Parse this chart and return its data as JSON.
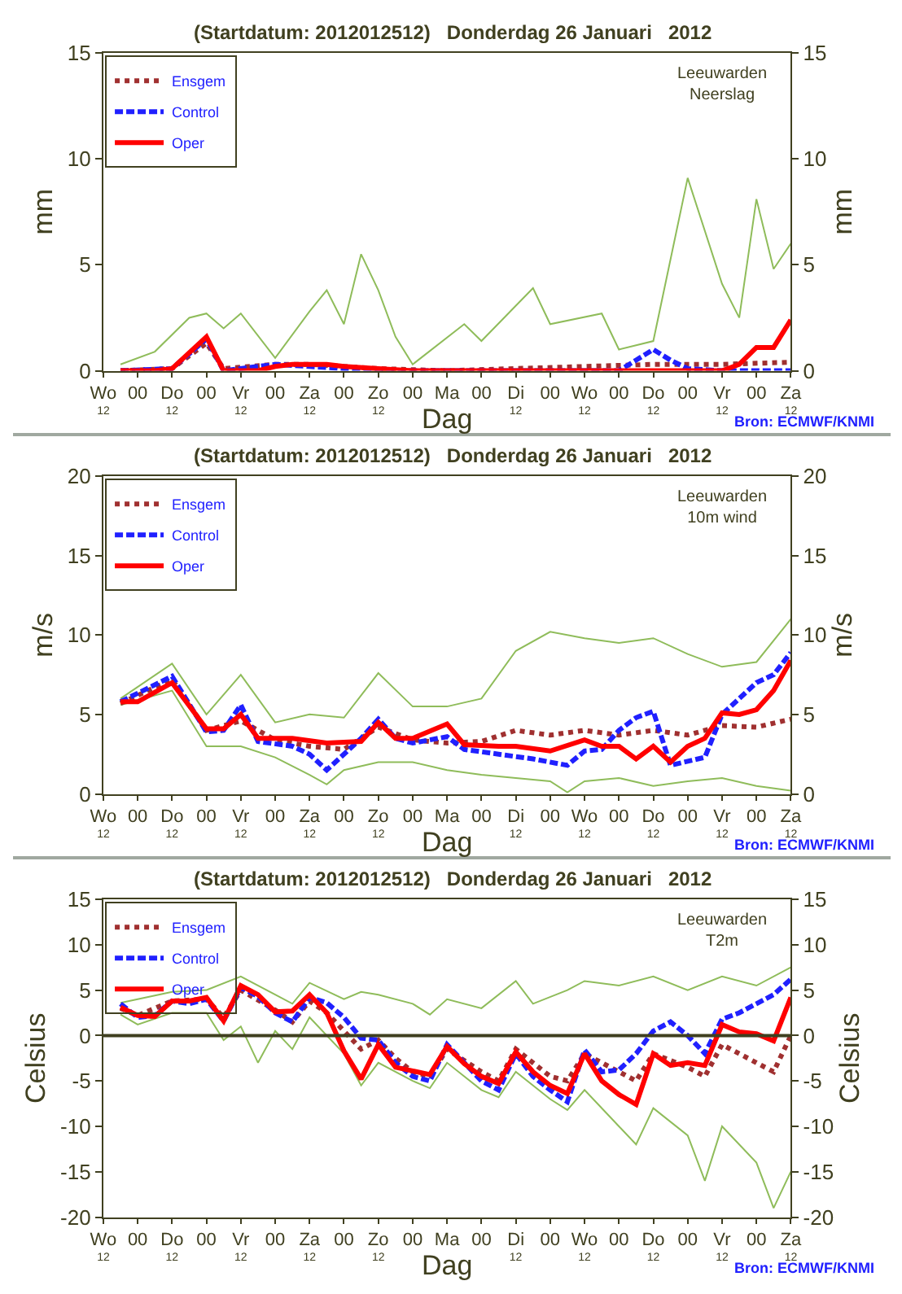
{
  "chart_data": [
    {
      "type": "line",
      "title": "(Startdatum: 2012012512)   Donderdag 26 Januari   2012",
      "xlabel": "Dag",
      "ylabel": "mm",
      "y2label": "mm",
      "annotations": [
        "Leeuwarden\nNeerslag",
        "Bron: ECMWF/KNMI"
      ],
      "xlim": [
        "2012-01-25T12:00",
        "2012-02-04T12:00"
      ],
      "xticks": [
        {
          "value": "2012-01-25T12:00",
          "label": "Wo"
        },
        {
          "value": "2012-01-26T00:00",
          "label": "00"
        },
        {
          "value": "2012-01-26T12:00",
          "label": "Do"
        },
        {
          "value": "2012-01-27T00:00",
          "label": "00"
        },
        {
          "value": "2012-01-27T12:00",
          "label": "Vr"
        },
        {
          "value": "2012-01-28T00:00",
          "label": "00"
        },
        {
          "value": "2012-01-28T12:00",
          "label": "Za"
        },
        {
          "value": "2012-01-29T00:00",
          "label": "00"
        },
        {
          "value": "2012-01-29T12:00",
          "label": "Zo"
        },
        {
          "value": "2012-01-30T00:00",
          "label": "00"
        },
        {
          "value": "2012-01-30T12:00",
          "label": "Ma"
        },
        {
          "value": "2012-01-31T00:00",
          "label": "00"
        },
        {
          "value": "2012-01-31T12:00",
          "label": "Di"
        },
        {
          "value": "2012-02-01T00:00",
          "label": "00"
        },
        {
          "value": "2012-02-01T12:00",
          "label": "Wo"
        },
        {
          "value": "2012-02-02T00:00",
          "label": "00"
        },
        {
          "value": "2012-02-02T12:00",
          "label": "Do"
        },
        {
          "value": "2012-02-03T00:00",
          "label": "00"
        },
        {
          "value": "2012-02-03T12:00",
          "label": "Vr"
        },
        {
          "value": "2012-02-04T00:00",
          "label": "00"
        },
        {
          "value": "2012-02-04T12:00",
          "label": "Za"
        }
      ],
      "x2lim": [
        "2012-01-25T12:00",
        "2012-02-04T12:00"
      ],
      "x2ticks": [
        {
          "value": "2012-01-25T12:00",
          "label": "12"
        },
        {
          "value": "2012-01-26T12:00",
          "label": "12"
        },
        {
          "value": "2012-01-27T12:00",
          "label": "12"
        },
        {
          "value": "2012-01-28T12:00",
          "label": "12"
        },
        {
          "value": "2012-01-29T12:00",
          "label": "12"
        },
        {
          "value": "2012-01-31T12:00",
          "label": "12"
        },
        {
          "value": "2012-02-01T12:00",
          "label": "12"
        },
        {
          "value": "2012-02-02T12:00",
          "label": "12"
        },
        {
          "value": "2012-02-03T12:00",
          "label": "12"
        },
        {
          "value": "2012-02-04T12:00",
          "label": "12"
        }
      ],
      "ylim": [
        0,
        15
      ],
      "yticks": [
        0,
        5,
        10,
        15
      ],
      "y2lim": [
        0,
        15
      ],
      "y2ticks": [
        0,
        5,
        10,
        15
      ],
      "legend": "top left",
      "series": [
        {
          "color": "#8fbc5a",
          "line_style": "solid",
          "x": [
            "2012-01-25T18:00",
            "2012-01-26T06:00",
            "2012-01-26T18:00",
            "2012-01-27T00:00",
            "2012-01-27T06:00",
            "2012-01-27T12:00",
            "2012-01-28T00:00",
            "2012-01-28T12:00",
            "2012-01-28T18:00",
            "2012-01-29T00:00",
            "2012-01-29T06:00",
            "2012-01-29T12:00",
            "2012-01-29T18:00",
            "2012-01-30T00:00",
            "2012-01-30T18:00",
            "2012-01-31T00:00",
            "2012-01-31T18:00",
            "2012-02-01T00:00",
            "2012-02-01T18:00",
            "2012-02-02T00:00",
            "2012-02-02T12:00",
            "2012-02-03T00:00",
            "2012-02-03T12:00",
            "2012-02-03T18:00",
            "2012-02-04T00:00",
            "2012-02-04T06:00",
            "2012-02-04T12:00"
          ],
          "values": [
            0.3,
            0.9,
            2.5,
            2.7,
            2.0,
            2.7,
            0.6,
            2.8,
            3.8,
            2.2,
            5.5,
            3.8,
            1.6,
            0.3,
            2.2,
            1.4,
            3.9,
            2.2,
            2.7,
            1.0,
            1.4,
            9.1,
            4.1,
            2.5,
            8.1,
            4.8,
            6.0
          ]
        },
        {
          "name": "Ensgem",
          "color": "#a03030",
          "line_style": "dotted",
          "x": [
            "2012-01-25T18:00",
            "2012-01-26T12:00",
            "2012-01-27T00:00",
            "2012-01-27T06:00",
            "2012-01-28T00:00",
            "2012-01-28T12:00",
            "2012-01-29T00:00",
            "2012-01-29T12:00",
            "2012-01-30T12:00",
            "2012-01-31T12:00",
            "2012-02-01T12:00",
            "2012-02-02T12:00",
            "2012-02-03T12:00",
            "2012-02-04T12:00"
          ],
          "values": [
            0,
            0.1,
            1.3,
            0.1,
            0.3,
            0.3,
            0.2,
            0.1,
            0,
            0.1,
            0.2,
            0.3,
            0.3,
            0.4
          ]
        },
        {
          "name": "Control",
          "color": "#2020ff",
          "line_style": "dashed",
          "x": [
            "2012-01-25T18:00",
            "2012-01-26T12:00",
            "2012-01-27T00:00",
            "2012-01-27T06:00",
            "2012-01-28T00:00",
            "2012-01-28T12:00",
            "2012-01-29T00:00",
            "2012-01-29T12:00",
            "2012-02-02T00:00",
            "2012-02-02T06:00",
            "2012-02-02T12:00",
            "2012-02-02T18:00",
            "2012-02-03T00:00",
            "2012-02-03T12:00",
            "2012-02-04T12:00"
          ],
          "values": [
            0,
            0.1,
            1.5,
            0,
            0.3,
            0.2,
            0.1,
            0,
            0,
            0.5,
            1.0,
            0.5,
            0.1,
            0,
            0
          ]
        },
        {
          "name": "Oper",
          "color": "#ff0000",
          "line_style": "solid",
          "x": [
            "2012-01-25T18:00",
            "2012-01-26T06:00",
            "2012-01-26T12:00",
            "2012-01-27T00:00",
            "2012-01-27T06:00",
            "2012-01-27T18:00",
            "2012-01-28T00:00",
            "2012-01-28T06:00",
            "2012-01-28T12:00",
            "2012-01-28T18:00",
            "2012-01-29T00:00",
            "2012-01-29T12:00",
            "2012-01-30T00:00",
            "2012-02-01T12:00",
            "2012-02-03T12:00",
            "2012-02-03T18:00",
            "2012-02-04T00:00",
            "2012-02-04T06:00",
            "2012-02-04T12:00"
          ],
          "values": [
            0,
            0,
            0.1,
            1.6,
            0,
            0,
            0.2,
            0.3,
            0.3,
            0.3,
            0.2,
            0.1,
            0,
            0,
            0,
            0.3,
            1.1,
            1.1,
            2.4
          ]
        }
      ]
    },
    {
      "type": "line",
      "title": "(Startdatum: 2012012512)   Donderdag 26 Januari   2012",
      "xlabel": "Dag",
      "ylabel": "m/s",
      "y2label": "m/s",
      "annotations": [
        "Leeuwarden\n10m wind",
        "Bron: ECMWF/KNMI"
      ],
      "xlim": [
        "2012-01-25T12:00",
        "2012-02-04T12:00"
      ],
      "xticks": [
        {
          "value": "2012-01-25T12:00",
          "label": "Wo"
        },
        {
          "value": "2012-01-26T00:00",
          "label": "00"
        },
        {
          "value": "2012-01-26T12:00",
          "label": "Do"
        },
        {
          "value": "2012-01-27T00:00",
          "label": "00"
        },
        {
          "value": "2012-01-27T12:00",
          "label": "Vr"
        },
        {
          "value": "2012-01-28T00:00",
          "label": "00"
        },
        {
          "value": "2012-01-28T12:00",
          "label": "Za"
        },
        {
          "value": "2012-01-29T00:00",
          "label": "00"
        },
        {
          "value": "2012-01-29T12:00",
          "label": "Zo"
        },
        {
          "value": "2012-01-30T00:00",
          "label": "00"
        },
        {
          "value": "2012-01-30T12:00",
          "label": "Ma"
        },
        {
          "value": "2012-01-31T00:00",
          "label": "00"
        },
        {
          "value": "2012-01-31T12:00",
          "label": "Di"
        },
        {
          "value": "2012-02-01T00:00",
          "label": "00"
        },
        {
          "value": "2012-02-01T12:00",
          "label": "Wo"
        },
        {
          "value": "2012-02-02T00:00",
          "label": "00"
        },
        {
          "value": "2012-02-02T12:00",
          "label": "Do"
        },
        {
          "value": "2012-02-03T00:00",
          "label": "00"
        },
        {
          "value": "2012-02-03T12:00",
          "label": "Vr"
        },
        {
          "value": "2012-02-04T00:00",
          "label": "00"
        },
        {
          "value": "2012-02-04T12:00",
          "label": "Za"
        }
      ],
      "x2lim": [
        "2012-01-25T12:00",
        "2012-02-04T12:00"
      ],
      "x2ticks": [
        {
          "value": "2012-01-25T12:00",
          "label": "12"
        },
        {
          "value": "2012-01-26T12:00",
          "label": "12"
        },
        {
          "value": "2012-01-27T12:00",
          "label": "12"
        },
        {
          "value": "2012-01-28T12:00",
          "label": "12"
        },
        {
          "value": "2012-01-29T12:00",
          "label": "12"
        },
        {
          "value": "2012-01-31T12:00",
          "label": "12"
        },
        {
          "value": "2012-02-01T12:00",
          "label": "12"
        },
        {
          "value": "2012-02-02T12:00",
          "label": "12"
        },
        {
          "value": "2012-02-03T12:00",
          "label": "12"
        },
        {
          "value": "2012-02-04T12:00",
          "label": "12"
        }
      ],
      "ylim": [
        0,
        20
      ],
      "yticks": [
        0,
        5,
        10,
        15,
        20
      ],
      "y2lim": [
        0,
        20
      ],
      "y2ticks": [
        0,
        5,
        10,
        15,
        20
      ],
      "legend": "top left",
      "series": [
        {
          "color": "#8fbc5a",
          "line_style": "solid",
          "x": [
            "2012-01-25T18:00",
            "2012-01-26T12:00",
            "2012-01-27T00:00",
            "2012-01-27T12:00",
            "2012-01-28T00:00",
            "2012-01-28T12:00",
            "2012-01-29T00:00",
            "2012-01-29T12:00",
            "2012-01-30T00:00",
            "2012-01-30T12:00",
            "2012-01-31T00:00",
            "2012-01-31T12:00",
            "2012-02-01T00:00",
            "2012-02-01T12:00",
            "2012-02-02T00:00",
            "2012-02-02T12:00",
            "2012-02-03T00:00",
            "2012-02-03T12:00",
            "2012-02-04T00:00",
            "2012-02-04T12:00"
          ],
          "values": [
            6.0,
            8.2,
            5.0,
            7.5,
            4.5,
            5.0,
            4.8,
            7.6,
            5.5,
            5.5,
            6.0,
            9.0,
            10.2,
            9.8,
            9.5,
            9.8,
            8.8,
            8.0,
            8.3,
            11.0
          ]
        },
        {
          "color": "#8fbc5a",
          "line_style": "solid",
          "x": [
            "2012-01-25T18:00",
            "2012-01-26T12:00",
            "2012-01-27T00:00",
            "2012-01-27T12:00",
            "2012-01-28T00:00",
            "2012-01-28T12:00",
            "2012-01-28T18:00",
            "2012-01-29T00:00",
            "2012-01-29T12:00",
            "2012-01-30T00:00",
            "2012-01-30T12:00",
            "2012-01-31T00:00",
            "2012-01-31T12:00",
            "2012-02-01T00:00",
            "2012-02-01T06:00",
            "2012-02-01T12:00",
            "2012-02-02T00:00",
            "2012-02-02T12:00",
            "2012-02-03T00:00",
            "2012-02-03T12:00",
            "2012-02-04T00:00",
            "2012-02-04T12:00"
          ],
          "values": [
            5.6,
            6.5,
            3.0,
            3.0,
            2.3,
            1.2,
            0.6,
            1.5,
            2.0,
            2.0,
            1.5,
            1.2,
            1.0,
            0.8,
            0.1,
            0.8,
            1.0,
            0.5,
            0.8,
            1.0,
            0.5,
            0.2
          ]
        },
        {
          "name": "Ensgem",
          "color": "#a03030",
          "line_style": "dotted",
          "x": [
            "2012-01-25T18:00",
            "2012-01-26T12:00",
            "2012-01-27T00:00",
            "2012-01-27T12:00",
            "2012-01-28T00:00",
            "2012-01-28T12:00",
            "2012-01-29T00:00",
            "2012-01-29T12:00",
            "2012-01-30T00:00",
            "2012-01-30T12:00",
            "2012-01-31T00:00",
            "2012-01-31T12:00",
            "2012-02-01T00:00",
            "2012-02-01T12:00",
            "2012-02-02T00:00",
            "2012-02-02T12:00",
            "2012-02-03T00:00",
            "2012-02-03T12:00",
            "2012-02-04T00:00",
            "2012-02-04T12:00"
          ],
          "values": [
            5.7,
            7.2,
            4.0,
            4.6,
            3.4,
            3.0,
            2.8,
            4.2,
            3.4,
            3.2,
            3.3,
            4.0,
            3.7,
            4.0,
            3.7,
            4.0,
            3.7,
            4.3,
            4.2,
            4.7
          ]
        },
        {
          "name": "Control",
          "color": "#2020ff",
          "line_style": "dashed",
          "x": [
            "2012-01-25T18:00",
            "2012-01-26T12:00",
            "2012-01-27T00:00",
            "2012-01-27T06:00",
            "2012-01-27T12:00",
            "2012-01-27T18:00",
            "2012-01-28T06:00",
            "2012-01-28T12:00",
            "2012-01-28T18:00",
            "2012-01-29T06:00",
            "2012-01-29T12:00",
            "2012-01-29T18:00",
            "2012-01-30T00:00",
            "2012-01-30T12:00",
            "2012-01-30T18:00",
            "2012-01-31T06:00",
            "2012-01-31T18:00",
            "2012-02-01T06:00",
            "2012-02-01T12:00",
            "2012-02-01T18:00",
            "2012-02-02T00:00",
            "2012-02-02T06:00",
            "2012-02-02T12:00",
            "2012-02-02T18:00",
            "2012-02-03T06:00",
            "2012-02-03T12:00",
            "2012-02-04T00:00",
            "2012-02-04T06:00",
            "2012-02-04T12:00"
          ],
          "values": [
            5.8,
            7.4,
            3.9,
            4.0,
            5.6,
            3.3,
            3.0,
            2.5,
            1.5,
            3.5,
            4.7,
            3.5,
            3.2,
            3.6,
            2.8,
            2.5,
            2.2,
            1.8,
            2.7,
            2.8,
            4.0,
            4.8,
            5.2,
            1.8,
            2.3,
            5.0,
            7.0,
            7.5,
            8.9
          ]
        },
        {
          "name": "Oper",
          "color": "#ff0000",
          "line_style": "solid",
          "x": [
            "2012-01-25T18:00",
            "2012-01-26T00:00",
            "2012-01-26T12:00",
            "2012-01-27T00:00",
            "2012-01-27T06:00",
            "2012-01-27T12:00",
            "2012-01-27T18:00",
            "2012-01-28T06:00",
            "2012-01-28T18:00",
            "2012-01-29T06:00",
            "2012-01-29T12:00",
            "2012-01-29T18:00",
            "2012-01-30T00:00",
            "2012-01-30T12:00",
            "2012-01-30T18:00",
            "2012-01-31T06:00",
            "2012-01-31T12:00",
            "2012-02-01T00:00",
            "2012-02-01T12:00",
            "2012-02-01T18:00",
            "2012-02-02T00:00",
            "2012-02-02T06:00",
            "2012-02-02T12:00",
            "2012-02-02T18:00",
            "2012-02-03T00:00",
            "2012-02-03T06:00",
            "2012-02-03T12:00",
            "2012-02-03T18:00",
            "2012-02-04T00:00",
            "2012-02-04T06:00",
            "2012-02-04T12:00"
          ],
          "values": [
            5.8,
            5.8,
            7.0,
            4.1,
            4.1,
            5.0,
            3.5,
            3.5,
            3.2,
            3.3,
            4.5,
            3.5,
            3.5,
            4.4,
            3.1,
            3.0,
            3.0,
            2.7,
            3.4,
            3.0,
            3.0,
            2.2,
            3.0,
            2.0,
            3.0,
            3.5,
            5.1,
            5.0,
            5.3,
            6.5,
            8.4
          ]
        }
      ]
    },
    {
      "type": "line",
      "title": "(Startdatum: 2012012512)   Donderdag 26 Januari   2012",
      "xlabel": "Dag",
      "ylabel": "Celsius",
      "y2label": "Celsius",
      "annotations": [
        "Leeuwarden\nT2m",
        "Bron: ECMWF/KNMI"
      ],
      "xlim": [
        "2012-01-25T12:00",
        "2012-02-04T12:00"
      ],
      "xticks": [
        {
          "value": "2012-01-25T12:00",
          "label": "Wo"
        },
        {
          "value": "2012-01-26T00:00",
          "label": "00"
        },
        {
          "value": "2012-01-26T12:00",
          "label": "Do"
        },
        {
          "value": "2012-01-27T00:00",
          "label": "00"
        },
        {
          "value": "2012-01-27T12:00",
          "label": "Vr"
        },
        {
          "value": "2012-01-28T00:00",
          "label": "00"
        },
        {
          "value": "2012-01-28T12:00",
          "label": "Za"
        },
        {
          "value": "2012-01-29T00:00",
          "label": "00"
        },
        {
          "value": "2012-01-29T12:00",
          "label": "Zo"
        },
        {
          "value": "2012-01-30T00:00",
          "label": "00"
        },
        {
          "value": "2012-01-30T12:00",
          "label": "Ma"
        },
        {
          "value": "2012-01-31T00:00",
          "label": "00"
        },
        {
          "value": "2012-01-31T12:00",
          "label": "Di"
        },
        {
          "value": "2012-02-01T00:00",
          "label": "00"
        },
        {
          "value": "2012-02-01T12:00",
          "label": "Wo"
        },
        {
          "value": "2012-02-02T00:00",
          "label": "00"
        },
        {
          "value": "2012-02-02T12:00",
          "label": "Do"
        },
        {
          "value": "2012-02-03T00:00",
          "label": "00"
        },
        {
          "value": "2012-02-03T12:00",
          "label": "Vr"
        },
        {
          "value": "2012-02-04T00:00",
          "label": "00"
        },
        {
          "value": "2012-02-04T12:00",
          "label": "Za"
        }
      ],
      "x2lim": [
        "2012-01-25T12:00",
        "2012-02-04T12:00"
      ],
      "x2ticks": [
        {
          "value": "2012-01-25T12:00",
          "label": "12"
        },
        {
          "value": "2012-01-26T12:00",
          "label": "12"
        },
        {
          "value": "2012-01-27T12:00",
          "label": "12"
        },
        {
          "value": "2012-01-28T12:00",
          "label": "12"
        },
        {
          "value": "2012-01-29T12:00",
          "label": "12"
        },
        {
          "value": "2012-01-31T12:00",
          "label": "12"
        },
        {
          "value": "2012-02-01T12:00",
          "label": "12"
        },
        {
          "value": "2012-02-02T12:00",
          "label": "12"
        },
        {
          "value": "2012-02-03T12:00",
          "label": "12"
        },
        {
          "value": "2012-02-04T12:00",
          "label": "12"
        }
      ],
      "ylim": [
        -20,
        15
      ],
      "yticks": [
        -20,
        -15,
        -10,
        -5,
        0,
        5,
        10,
        15
      ],
      "y2lim": [
        -20,
        15
      ],
      "y2ticks": [
        -20,
        -15,
        -10,
        -5,
        0,
        5,
        10,
        15
      ],
      "legend": "top left",
      "ref_lines": [
        {
          "axis": "y",
          "value": 0,
          "color": "#404020"
        }
      ],
      "series": [
        {
          "color": "#8fbc5a",
          "line_style": "solid",
          "x": [
            "2012-01-25T18:00",
            "2012-01-26T12:00",
            "2012-01-27T00:00",
            "2012-01-27T12:00",
            "2012-01-28T00:00",
            "2012-01-28T06:00",
            "2012-01-28T12:00",
            "2012-01-29T00:00",
            "2012-01-29T06:00",
            "2012-01-29T12:00",
            "2012-01-30T00:00",
            "2012-01-30T06:00",
            "2012-01-30T12:00",
            "2012-01-31T00:00",
            "2012-01-31T12:00",
            "2012-01-31T18:00",
            "2012-02-01T06:00",
            "2012-02-01T12:00",
            "2012-02-02T00:00",
            "2012-02-02T12:00",
            "2012-02-03T00:00",
            "2012-02-03T12:00",
            "2012-02-04T00:00",
            "2012-02-04T12:00"
          ],
          "values": [
            3.6,
            4.8,
            5.0,
            6.5,
            4.5,
            3.5,
            5.8,
            4.0,
            4.8,
            4.5,
            3.5,
            2.3,
            4.0,
            3.0,
            6.0,
            3.5,
            5.0,
            6.0,
            5.5,
            6.5,
            5.0,
            6.5,
            5.5,
            7.5
          ]
        },
        {
          "color": "#8fbc5a",
          "line_style": "solid",
          "x": [
            "2012-01-25T18:00",
            "2012-01-26T00:00",
            "2012-01-26T12:00",
            "2012-01-27T00:00",
            "2012-01-27T06:00",
            "2012-01-27T12:00",
            "2012-01-27T18:00",
            "2012-01-28T00:00",
            "2012-01-28T06:00",
            "2012-01-28T12:00",
            "2012-01-29T00:00",
            "2012-01-29T06:00",
            "2012-01-29T12:00",
            "2012-01-30T00:00",
            "2012-01-30T06:00",
            "2012-01-30T12:00",
            "2012-01-31T00:00",
            "2012-01-31T06:00",
            "2012-01-31T12:00",
            "2012-02-01T00:00",
            "2012-02-01T06:00",
            "2012-02-01T12:00",
            "2012-02-02T00:00",
            "2012-02-02T06:00",
            "2012-02-02T12:00",
            "2012-02-03T00:00",
            "2012-02-03T06:00",
            "2012-02-03T12:00",
            "2012-02-04T00:00",
            "2012-02-04T06:00",
            "2012-02-04T12:00"
          ],
          "values": [
            2.3,
            1.2,
            2.5,
            2.5,
            -0.5,
            1.0,
            -3.0,
            0.5,
            -1.5,
            2.0,
            -2.0,
            -5.5,
            -3.0,
            -5.0,
            -5.8,
            -3.0,
            -6.0,
            -6.8,
            -4.0,
            -7.0,
            -8.2,
            -6.0,
            -10.0,
            -12.0,
            -8.0,
            -11.0,
            -16.0,
            -10.0,
            -14.0,
            -19.0,
            -15.0
          ]
        },
        {
          "name": "Ensgem",
          "color": "#a03030",
          "line_style": "dotted",
          "x": [
            "2012-01-25T18:00",
            "2012-01-26T00:00",
            "2012-01-26T12:00",
            "2012-01-27T00:00",
            "2012-01-27T06:00",
            "2012-01-27T12:00",
            "2012-01-28T00:00",
            "2012-01-28T06:00",
            "2012-01-28T12:00",
            "2012-01-28T18:00",
            "2012-01-29T00:00",
            "2012-01-29T06:00",
            "2012-01-29T12:00",
            "2012-01-29T18:00",
            "2012-01-30T00:00",
            "2012-01-30T06:00",
            "2012-01-30T12:00",
            "2012-01-31T00:00",
            "2012-01-31T06:00",
            "2012-01-31T12:00",
            "2012-02-01T00:00",
            "2012-02-01T06:00",
            "2012-02-01T12:00",
            "2012-02-02T00:00",
            "2012-02-02T06:00",
            "2012-02-02T12:00",
            "2012-02-03T00:00",
            "2012-02-03T06:00",
            "2012-02-03T12:00",
            "2012-02-04T00:00",
            "2012-02-04T06:00",
            "2012-02-04T12:00"
          ],
          "values": [
            3.0,
            2.2,
            3.8,
            4.0,
            2.0,
            5.0,
            2.8,
            1.5,
            3.8,
            2.5,
            0.5,
            -1.5,
            -0.5,
            -2.5,
            -4.0,
            -4.5,
            -1.5,
            -4.0,
            -5.0,
            -1.5,
            -4.5,
            -5.0,
            -2.0,
            -4.0,
            -5.0,
            -2.0,
            -3.5,
            -4.5,
            -1.0,
            -3.0,
            -4.0,
            0
          ]
        },
        {
          "name": "Control",
          "color": "#2020ff",
          "line_style": "dashed",
          "x": [
            "2012-01-25T18:00",
            "2012-01-26T00:00",
            "2012-01-26T06:00",
            "2012-01-26T12:00",
            "2012-01-26T18:00",
            "2012-01-27T00:00",
            "2012-01-27T06:00",
            "2012-01-27T12:00",
            "2012-01-27T18:00",
            "2012-01-28T00:00",
            "2012-01-28T06:00",
            "2012-01-28T12:00",
            "2012-01-28T18:00",
            "2012-01-29T00:00",
            "2012-01-29T06:00",
            "2012-01-29T12:00",
            "2012-01-29T18:00",
            "2012-01-30T00:00",
            "2012-01-30T06:00",
            "2012-01-30T12:00",
            "2012-01-30T18:00",
            "2012-01-31T00:00",
            "2012-01-31T06:00",
            "2012-01-31T12:00",
            "2012-01-31T18:00",
            "2012-02-01T00:00",
            "2012-02-01T06:00",
            "2012-02-01T12:00",
            "2012-02-01T18:00",
            "2012-02-02T00:00",
            "2012-02-02T06:00",
            "2012-02-02T12:00",
            "2012-02-02T18:00",
            "2012-02-03T00:00",
            "2012-02-03T06:00",
            "2012-02-03T12:00",
            "2012-02-03T18:00",
            "2012-02-04T00:00",
            "2012-02-04T06:00",
            "2012-02-04T12:00"
          ],
          "values": [
            3.5,
            2.0,
            2.2,
            3.8,
            3.5,
            4.0,
            1.6,
            5.3,
            4.3,
            2.5,
            1.5,
            4.2,
            3.6,
            2.0,
            -0.3,
            -0.5,
            -3.0,
            -4.5,
            -5.0,
            -1.0,
            -3.0,
            -5.0,
            -6.0,
            -2.0,
            -4.5,
            -6.0,
            -7.3,
            -1.6,
            -4.0,
            -3.8,
            -2.0,
            0.5,
            1.5,
            0,
            -2.0,
            1.8,
            2.5,
            3.5,
            4.5,
            6.2
          ]
        },
        {
          "name": "Oper",
          "color": "#ff0000",
          "line_style": "solid",
          "x": [
            "2012-01-25T18:00",
            "2012-01-26T00:00",
            "2012-01-26T06:00",
            "2012-01-26T12:00",
            "2012-01-26T18:00",
            "2012-01-27T00:00",
            "2012-01-27T06:00",
            "2012-01-27T12:00",
            "2012-01-27T18:00",
            "2012-01-28T00:00",
            "2012-01-28T06:00",
            "2012-01-28T12:00",
            "2012-01-28T18:00",
            "2012-01-29T00:00",
            "2012-01-29T06:00",
            "2012-01-29T12:00",
            "2012-01-29T18:00",
            "2012-01-30T00:00",
            "2012-01-30T06:00",
            "2012-01-30T12:00",
            "2012-01-30T18:00",
            "2012-01-31T00:00",
            "2012-01-31T06:00",
            "2012-01-31T12:00",
            "2012-01-31T18:00",
            "2012-02-01T00:00",
            "2012-02-01T06:00",
            "2012-02-01T12:00",
            "2012-02-01T18:00",
            "2012-02-02T00:00",
            "2012-02-02T06:00",
            "2012-02-02T12:00",
            "2012-02-02T18:00",
            "2012-02-03T00:00",
            "2012-02-03T06:00",
            "2012-02-03T12:00",
            "2012-02-03T18:00",
            "2012-02-04T00:00",
            "2012-02-04T06:00",
            "2012-02-04T12:00"
          ],
          "values": [
            3.1,
            2.2,
            2.1,
            3.8,
            3.8,
            4.2,
            1.6,
            5.5,
            4.5,
            2.6,
            2.7,
            4.5,
            2.5,
            -1.7,
            -4.8,
            -1.0,
            -3.5,
            -3.9,
            -4.3,
            -1.2,
            -3.1,
            -4.5,
            -5.3,
            -1.8,
            -4.0,
            -5.5,
            -6.4,
            -2.0,
            -5.0,
            -6.5,
            -7.6,
            -2.0,
            -3.3,
            -3.0,
            -3.3,
            1.2,
            0.4,
            0.2,
            -0.6,
            4.2
          ]
        }
      ]
    }
  ]
}
